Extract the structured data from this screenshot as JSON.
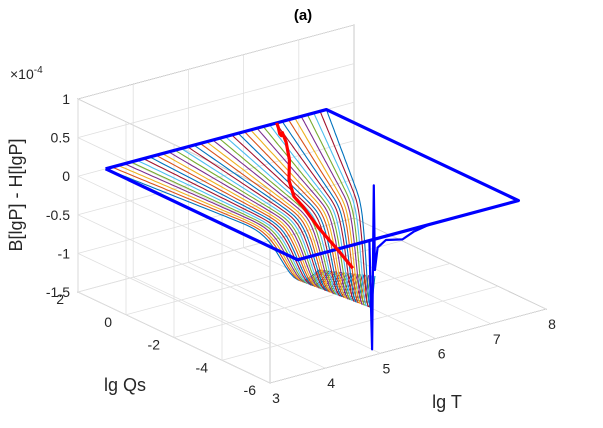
{
  "chart_data": {
    "type": "surface-3d",
    "title": "(a)",
    "xlabel": "lg T",
    "ylabel": "lg Qs",
    "zlabel": "B[lgP] - H[lgP]",
    "z_exponent_label": "×10",
    "z_exponent_power": "-4",
    "xlim": [
      3,
      8
    ],
    "ylim": [
      -6,
      2
    ],
    "zlim": [
      -1.5,
      1
    ],
    "x_ticks": [
      "3",
      "4",
      "5",
      "6",
      "7",
      "8"
    ],
    "y_ticks": [
      "-6",
      "-4",
      "-2",
      "0",
      "2"
    ],
    "z_ticks": [
      "-1.5",
      "-1",
      "-0.5",
      "0",
      "0.5",
      "1"
    ],
    "grid": true,
    "surface_lines": {
      "count": 36,
      "x_range": [
        3.5,
        7.5
      ],
      "y_range": [
        -6,
        2
      ],
      "dip_x_range": [
        3.9,
        4.9
      ],
      "dip_depth_range": [
        -0.45,
        -1.05
      ],
      "colors": [
        "#0072BD",
        "#D95319",
        "#EDB120",
        "#7E2F8E",
        "#77AC30",
        "#4DBEEE",
        "#A2142F"
      ]
    },
    "series": [
      {
        "color": "#0000FF",
        "kind": "boundary",
        "points": [
          [
            3.5,
            2,
            0
          ],
          [
            7.5,
            2,
            0
          ],
          [
            7.5,
            -6,
            0
          ],
          [
            3.5,
            -6,
            0
          ]
        ]
      },
      {
        "color": "#0000FF",
        "kind": "spike",
        "points": [
          [
            4.8,
            -6,
            0
          ],
          [
            4.82,
            -6,
            -0.6
          ],
          [
            4.85,
            -6,
            -1.42
          ],
          [
            4.88,
            -6,
            0.7
          ],
          [
            4.9,
            -6,
            -0.4
          ],
          [
            4.95,
            -6,
            -0.12
          ],
          [
            5.1,
            -6,
            -0.05
          ],
          [
            5.4,
            -6,
            -0.1
          ],
          [
            5.6,
            -6,
            -0.04
          ],
          [
            5.9,
            -6,
            0
          ]
        ]
      },
      {
        "color": "#FF0000",
        "kind": "ridge",
        "points": [
          [
            4.5,
            -6,
            -0.3
          ],
          [
            4.6,
            -5.2,
            -0.22
          ],
          [
            4.75,
            -4,
            -0.12
          ],
          [
            4.9,
            -3,
            -0.02
          ],
          [
            5.0,
            -2.4,
            0.0
          ],
          [
            5.3,
            -1.5,
            0.02
          ],
          [
            5.7,
            -0.6,
            0.08
          ],
          [
            5.9,
            0.0,
            0.18
          ],
          [
            6.05,
            0.5,
            0.2
          ],
          [
            6.25,
            1.0,
            0.05
          ],
          [
            6.35,
            1.3,
            0.01
          ],
          [
            6.5,
            1.7,
            0.0
          ],
          [
            6.6,
            2,
            0.0
          ]
        ]
      }
    ]
  }
}
